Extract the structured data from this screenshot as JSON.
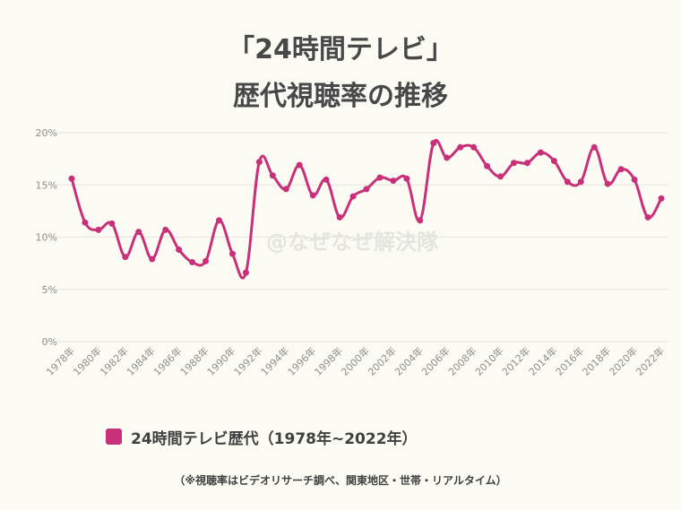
{
  "title_line1": "「24時間テレビ」",
  "title_line2": "歴代視聴率の推移",
  "watermark": "@なぜなぜ解決隊",
  "legend_label": "24時間テレビ歴代（1978年~2022年）",
  "note": "（※視聴率はビデオリサーチ調べ、関東地区・世帯・リアルタイム）",
  "colors": {
    "series": "#c8317a",
    "background": "#fbfbf3",
    "grid": "#e6e6e0"
  },
  "chart_data": {
    "type": "line",
    "x": [
      1978,
      1979,
      1980,
      1981,
      1982,
      1983,
      1984,
      1985,
      1986,
      1987,
      1988,
      1989,
      1990,
      1991,
      1992,
      1993,
      1994,
      1995,
      1996,
      1997,
      1998,
      1999,
      2000,
      2001,
      2002,
      2003,
      2004,
      2005,
      2006,
      2007,
      2008,
      2009,
      2010,
      2011,
      2012,
      2013,
      2014,
      2015,
      2016,
      2017,
      2018,
      2019,
      2020,
      2021,
      2022
    ],
    "x_tick_labels": [
      "1978年",
      "1980年",
      "1982年",
      "1984年",
      "1986年",
      "1988年",
      "1990年",
      "1992年",
      "1994年",
      "1996年",
      "1998年",
      "2000年",
      "2002年",
      "2004年",
      "2006年",
      "2008年",
      "2010年",
      "2012年",
      "2014年",
      "2016年",
      "2018年",
      "2020年",
      "2022年"
    ],
    "y_tick_labels": [
      "0%",
      "5%",
      "10%",
      "15%",
      "20%"
    ],
    "y_ticks": [
      0,
      5,
      10,
      15,
      20
    ],
    "ylim": [
      0,
      20
    ],
    "grid": true,
    "legend_position": "bottom",
    "series": [
      {
        "name": "24時間テレビ歴代（1978年~2022年）",
        "values": [
          15.6,
          11.4,
          10.7,
          11.3,
          8.1,
          10.5,
          7.9,
          10.7,
          8.8,
          7.6,
          7.7,
          11.6,
          8.4,
          6.6,
          17.2,
          15.9,
          14.6,
          16.9,
          14.0,
          15.5,
          11.9,
          13.9,
          14.6,
          15.7,
          15.4,
          15.6,
          11.6,
          19.0,
          17.6,
          18.6,
          18.6,
          16.8,
          15.8,
          17.1,
          17.1,
          18.1,
          17.3,
          15.3,
          15.3,
          18.6,
          15.1,
          16.5,
          15.5,
          11.9,
          13.7
        ]
      }
    ]
  }
}
